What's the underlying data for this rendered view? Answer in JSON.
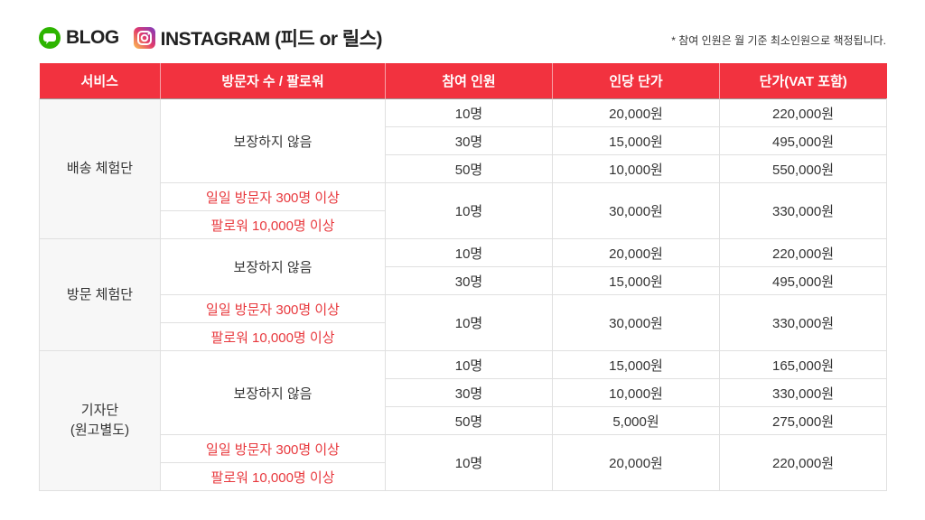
{
  "header": {
    "blog": "BLOG",
    "instagram": "INSTAGRAM (피드 or 릴스)",
    "note": "* 참여 인원은 월 기준 최소인원으로 책정됩니다."
  },
  "table": {
    "columns": [
      "서비스",
      "방문자 수 / 팔로워",
      "참여 인원",
      "인당 단가",
      "단가(VAT 포함)"
    ],
    "groups": [
      {
        "service": "배송 체험단",
        "blocks": [
          {
            "requirement": [
              "보장하지 않음"
            ],
            "rows": [
              [
                "10명",
                "20,000원",
                "220,000원"
              ],
              [
                "30명",
                "15,000원",
                "495,000원"
              ],
              [
                "50명",
                "10,000원",
                "550,000원"
              ]
            ]
          },
          {
            "requirement": [
              "일일 방문자 300명 이상",
              "팔로워 10,000명 이상"
            ],
            "rows": [
              [
                "10명",
                "30,000원",
                "330,000원"
              ]
            ]
          }
        ]
      },
      {
        "service": "방문 체험단",
        "blocks": [
          {
            "requirement": [
              "보장하지 않음"
            ],
            "rows": [
              [
                "10명",
                "20,000원",
                "220,000원"
              ],
              [
                "30명",
                "15,000원",
                "495,000원"
              ]
            ]
          },
          {
            "requirement": [
              "일일 방문자 300명 이상",
              "팔로워 10,000명 이상"
            ],
            "rows": [
              [
                "10명",
                "30,000원",
                "330,000원"
              ]
            ]
          }
        ]
      },
      {
        "service": "기자단\n(원고별도)",
        "blocks": [
          {
            "requirement": [
              "보장하지 않음"
            ],
            "rows": [
              [
                "10명",
                "15,000원",
                "165,000원"
              ],
              [
                "30명",
                "10,000원",
                "330,000원"
              ],
              [
                "50명",
                "5,000원",
                "275,000원"
              ]
            ]
          },
          {
            "requirement": [
              "일일 방문자 300명 이상",
              "팔로워 10,000명 이상"
            ],
            "rows": [
              [
                "10명",
                "20,000원",
                "220,000원"
              ]
            ]
          }
        ]
      }
    ]
  }
}
